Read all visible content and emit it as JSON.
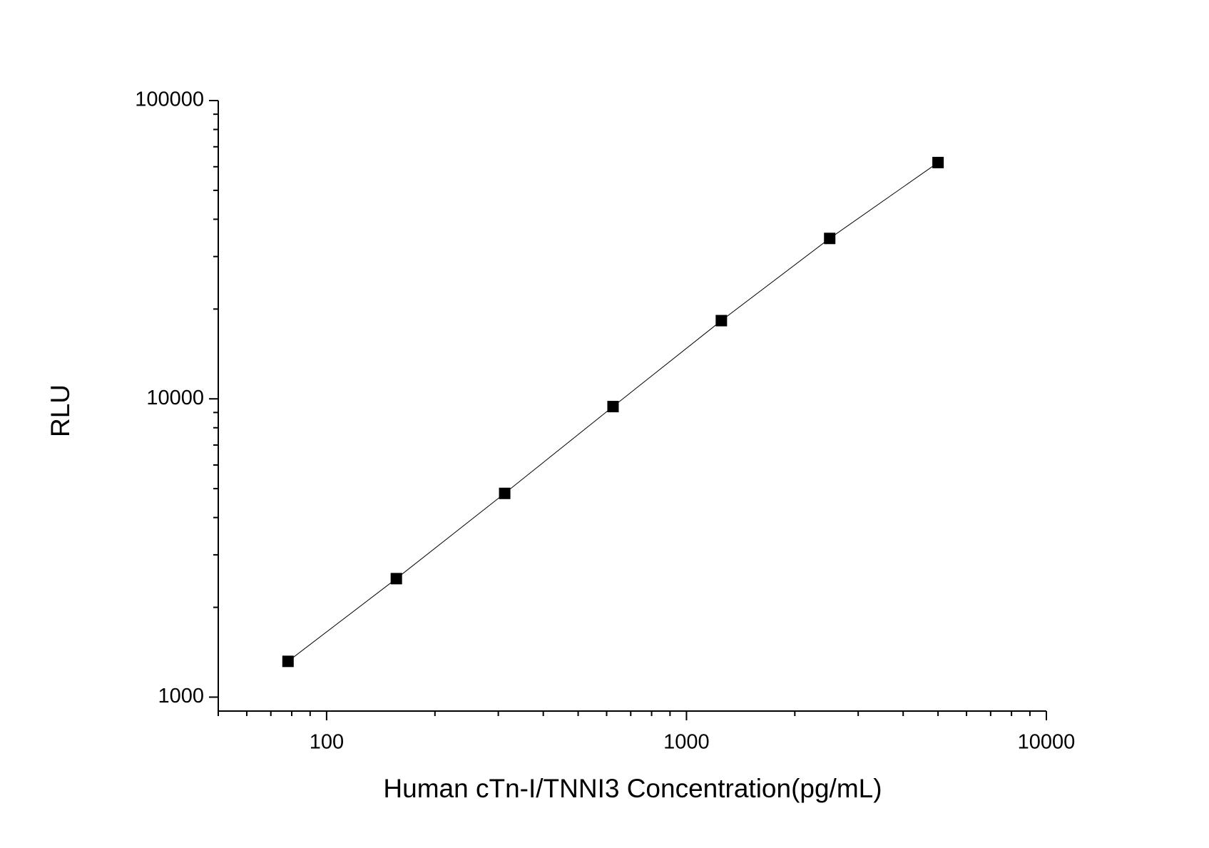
{
  "chart_data": {
    "type": "scatter-line",
    "x_label": "Human cTn-I/TNNI3 Concentration(pg/mL)",
    "y_label": "RLU",
    "x": [
      78.125,
      156.25,
      312.5,
      625,
      1250,
      2500,
      5000
    ],
    "series": [
      {
        "color": "#000000",
        "values": [
          1318,
          2496,
          4820,
          9420,
          18290,
          34500,
          61970
        ]
      }
    ],
    "xlim": [
      50,
      10000
    ],
    "ylim": [
      898,
      100000
    ],
    "xticks": [
      100,
      1000,
      10000
    ],
    "yticks": [
      1000,
      10000,
      100000
    ],
    "xminorticks": [
      50,
      60,
      70,
      80,
      90,
      200,
      300,
      400,
      500,
      600,
      700,
      800,
      900,
      2000,
      3000,
      4000,
      5000,
      6000,
      7000,
      8000,
      9000
    ],
    "yminorticks": [
      2000,
      3000,
      4000,
      5000,
      6000,
      7000,
      8000,
      9000,
      20000,
      30000,
      40000,
      50000,
      60000,
      70000,
      80000,
      90000
    ],
    "xscale": "log",
    "yscale": "log",
    "grid": false
  }
}
